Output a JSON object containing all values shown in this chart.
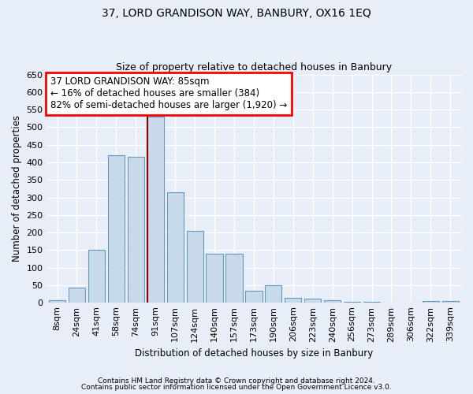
{
  "title": "37, LORD GRANDISON WAY, BANBURY, OX16 1EQ",
  "subtitle": "Size of property relative to detached houses in Banbury",
  "xlabel": "Distribution of detached houses by size in Banbury",
  "ylabel": "Number of detached properties",
  "categories": [
    "8sqm",
    "24sqm",
    "41sqm",
    "58sqm",
    "74sqm",
    "91sqm",
    "107sqm",
    "124sqm",
    "140sqm",
    "157sqm",
    "173sqm",
    "190sqm",
    "206sqm",
    "223sqm",
    "240sqm",
    "256sqm",
    "273sqm",
    "289sqm",
    "306sqm",
    "322sqm",
    "339sqm"
  ],
  "values": [
    7,
    43,
    150,
    420,
    415,
    530,
    315,
    205,
    140,
    140,
    35,
    50,
    15,
    12,
    8,
    3,
    2,
    1,
    1,
    5,
    5
  ],
  "bar_color": "#c8daea",
  "bar_edge_color": "#6699bb",
  "property_line_x": 4.575,
  "annotation_line1": "37 LORD GRANDISON WAY: 85sqm",
  "annotation_line2": "← 16% of detached houses are smaller (384)",
  "annotation_line3": "82% of semi-detached houses are larger (1,920) →",
  "ylim": [
    0,
    650
  ],
  "yticks": [
    0,
    50,
    100,
    150,
    200,
    250,
    300,
    350,
    400,
    450,
    500,
    550,
    600,
    650
  ],
  "footer1": "Contains HM Land Registry data © Crown copyright and database right 2024.",
  "footer2": "Contains public sector information licensed under the Open Government Licence v3.0.",
  "bg_color": "#e8eef8",
  "plot_bg_color": "#e8eef8",
  "grid_color": "#ffffff",
  "title_fontsize": 10,
  "subtitle_fontsize": 9,
  "axis_label_fontsize": 8.5,
  "tick_fontsize": 8,
  "annotation_fontsize": 8.5,
  "footer_fontsize": 6.5
}
